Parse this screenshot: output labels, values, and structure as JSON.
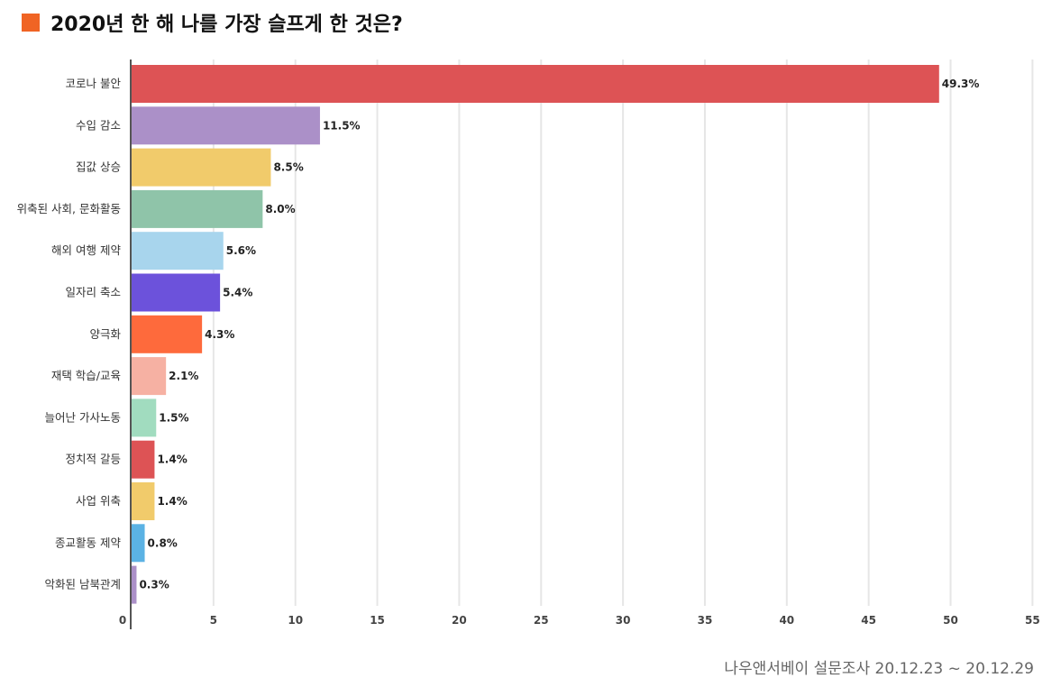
{
  "header": {
    "title": "2020년 한 해 나를 가장 슬프게 한 것은?",
    "accent_color": "#f06424"
  },
  "footer": {
    "source": "나우앤서베이 설문조사 20.12.23 ~ 20.12.29"
  },
  "chart_data": {
    "type": "bar",
    "orientation": "horizontal",
    "title": "2020년 한 해 나를 가장 슬프게 한 것은?",
    "xlabel": "",
    "ylabel": "",
    "xlim": [
      0,
      55
    ],
    "xticks": [
      0,
      5,
      10,
      15,
      20,
      25,
      30,
      35,
      40,
      45,
      50,
      55
    ],
    "grid": true,
    "legend": "none",
    "categories": [
      "코로나 불안",
      "수입 감소",
      "집값 상승",
      "위축된 사회, 문화활동",
      "해외 여행 제약",
      "일자리 축소",
      "양극화",
      "재택 학습/교육",
      "늘어난 가사노동",
      "정치적 갈등",
      "사업 위축",
      "종교활동 제약",
      "악화된 남북관계"
    ],
    "values": [
      49.3,
      11.5,
      8.5,
      8.0,
      5.6,
      5.4,
      4.3,
      2.1,
      1.5,
      1.4,
      1.4,
      0.8,
      0.3
    ],
    "value_labels": [
      "49.3%",
      "11.5%",
      "8.5%",
      "8.0%",
      "5.6%",
      "5.4%",
      "4.3%",
      "2.1%",
      "1.5%",
      "1.4%",
      "1.4%",
      "0.8%",
      "0.3%"
    ],
    "colors": [
      "#dd5355",
      "#ab90c8",
      "#f1cb6b",
      "#8fc4a9",
      "#a8d5ed",
      "#6c52db",
      "#fe6a3c",
      "#f6b1a3",
      "#a1dcbf",
      "#dd5355",
      "#f1cb6b",
      "#5bb2e4",
      "#ab90c8"
    ]
  }
}
